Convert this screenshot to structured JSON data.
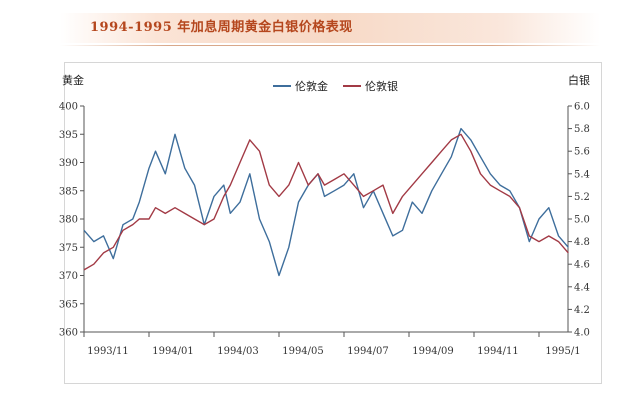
{
  "title": "1994-1995 年加息周期黄金白银价格表现",
  "chart_data": {
    "type": "line",
    "ylabel_left": "黄金",
    "ylabel_right": "白银",
    "ylim_left": [
      360,
      400
    ],
    "ylim_right": [
      4.0,
      6.0
    ],
    "yticks_left": [
      "400",
      "395",
      "390",
      "385",
      "380",
      "375",
      "370",
      "365",
      "360"
    ],
    "yticks_right": [
      "6.0",
      "5.8",
      "5.6",
      "5.4",
      "5.2",
      "5.0",
      "4.8",
      "4.6",
      "4.4",
      "4.2",
      "4.0"
    ],
    "x_categories": [
      "1993/11",
      "1994/01",
      "1994/03",
      "1994/05",
      "1994/07",
      "1994/09",
      "1994/11",
      "1995/1"
    ],
    "legend": [
      "伦敦金",
      "伦敦银"
    ],
    "series": [
      {
        "name": "伦敦金",
        "axis": "left",
        "color": "#3e6e9c",
        "x": [
          0,
          0.15,
          0.3,
          0.45,
          0.6,
          0.75,
          0.85,
          1.0,
          1.1,
          1.25,
          1.4,
          1.55,
          1.7,
          1.85,
          2.0,
          2.15,
          2.25,
          2.4,
          2.55,
          2.7,
          2.85,
          3.0,
          3.15,
          3.3,
          3.45,
          3.6,
          3.7,
          3.85,
          4.0,
          4.15,
          4.3,
          4.45,
          4.6,
          4.75,
          4.9,
          5.05,
          5.2,
          5.35,
          5.5,
          5.65,
          5.8,
          5.95,
          6.1,
          6.25,
          6.4,
          6.55,
          6.7,
          6.85,
          7.0,
          7.15,
          7.3,
          7.45
        ],
        "values": [
          378,
          376,
          377,
          373,
          379,
          380,
          383,
          389,
          392,
          388,
          395,
          389,
          386,
          379,
          384,
          386,
          381,
          383,
          388,
          380,
          376,
          370,
          375,
          383,
          386,
          388,
          384,
          385,
          386,
          388,
          382,
          385,
          381,
          377,
          378,
          383,
          381,
          385,
          388,
          391,
          396,
          394,
          391,
          388,
          386,
          385,
          382,
          376,
          380,
          382,
          377,
          375
        ]
      },
      {
        "name": "伦敦银",
        "axis": "right",
        "color": "#a23a45",
        "x": [
          0,
          0.15,
          0.3,
          0.45,
          0.6,
          0.75,
          0.85,
          1.0,
          1.1,
          1.25,
          1.4,
          1.55,
          1.7,
          1.85,
          2.0,
          2.15,
          2.25,
          2.4,
          2.55,
          2.7,
          2.85,
          3.0,
          3.15,
          3.3,
          3.45,
          3.6,
          3.7,
          3.85,
          4.0,
          4.15,
          4.3,
          4.45,
          4.6,
          4.75,
          4.9,
          5.05,
          5.2,
          5.35,
          5.5,
          5.65,
          5.8,
          5.95,
          6.1,
          6.25,
          6.4,
          6.55,
          6.7,
          6.85,
          7.0,
          7.15,
          7.3,
          7.45
        ],
        "values": [
          4.55,
          4.6,
          4.7,
          4.75,
          4.9,
          4.95,
          5.0,
          5.0,
          5.1,
          5.05,
          5.1,
          5.05,
          5.0,
          4.95,
          5.0,
          5.2,
          5.3,
          5.5,
          5.7,
          5.6,
          5.3,
          5.2,
          5.3,
          5.5,
          5.3,
          5.4,
          5.3,
          5.35,
          5.4,
          5.3,
          5.2,
          5.25,
          5.3,
          5.05,
          5.2,
          5.3,
          5.4,
          5.5,
          5.6,
          5.7,
          5.75,
          5.6,
          5.4,
          5.3,
          5.25,
          5.2,
          5.1,
          4.85,
          4.8,
          4.85,
          4.8,
          4.7
        ]
      }
    ]
  }
}
